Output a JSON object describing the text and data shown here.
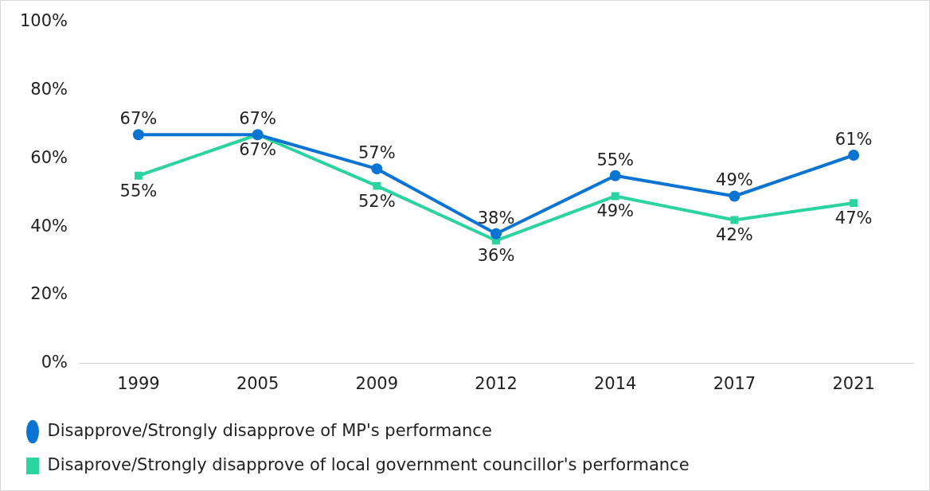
{
  "chart_data": {
    "type": "line",
    "categories": [
      "1999",
      "2005",
      "2009",
      "2012",
      "2014",
      "2017",
      "2021"
    ],
    "series": [
      {
        "name": "Disapprove/Strongly disapprove of MP's performance",
        "color": "#0b74d3",
        "marker": "circle",
        "values": [
          67,
          67,
          57,
          38,
          55,
          49,
          61
        ],
        "value_labels": [
          "67%",
          "67%",
          "57%",
          "38%",
          "55%",
          "49%",
          "61%"
        ]
      },
      {
        "name": "Disaprove/Strongly disapprove of local government councillor's performance",
        "color": "#2ad3a0",
        "marker": "square",
        "values": [
          55,
          67,
          52,
          36,
          49,
          42,
          47
        ],
        "value_labels": [
          "55%",
          "67%",
          "52%",
          "36%",
          "49%",
          "42%",
          "47%"
        ]
      }
    ],
    "ylim": [
      0,
      100
    ],
    "yticks": [
      {
        "value": 0,
        "label": "0%"
      },
      {
        "value": 20,
        "label": "20%"
      },
      {
        "value": 40,
        "label": "40%"
      },
      {
        "value": 60,
        "label": "60%"
      },
      {
        "value": 80,
        "label": "80%"
      },
      {
        "value": 100,
        "label": "100%"
      }
    ],
    "grid": false,
    "legend": "bottom left"
  }
}
